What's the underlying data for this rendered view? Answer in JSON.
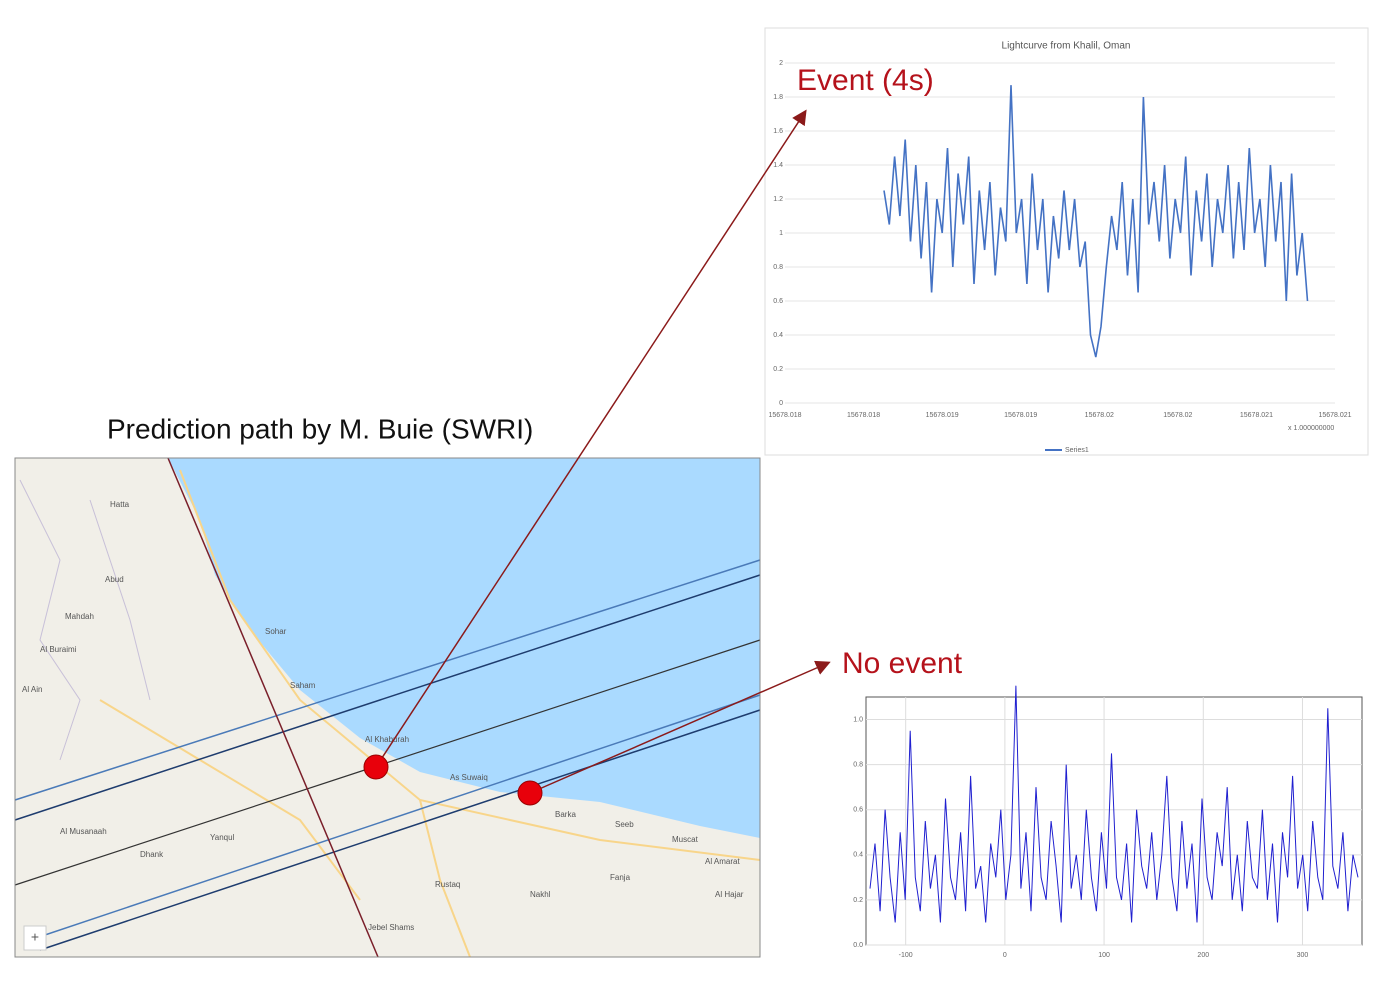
{
  "figure": {
    "title": "Prediction path by M. Buie (SWRI)",
    "event_label": "Event (4s)",
    "no_event_label": "No event",
    "map_labels": [
      "Hatta",
      "Abud",
      "Mahdah",
      "Al Buraimi",
      "Al Ain",
      "Sohar",
      "Saham",
      "Al Khaburah",
      "As Suwaiq",
      "Al Musanaah",
      "Barka",
      "Seeb",
      "Muscat",
      "Al Amarat",
      "Al Hajar",
      "Fanja",
      "Nakhl",
      "Rustaq",
      "Yanqul",
      "Dhank",
      "Jebel Shams"
    ],
    "map_zoom": "+"
  },
  "chart_data": [
    {
      "type": "line",
      "title": "Lightcurve from Khalil, Oman",
      "ylim": [
        0,
        2
      ],
      "yticks": [
        0,
        0.2,
        0.4,
        0.6,
        0.8,
        1,
        1.2,
        1.4,
        1.6,
        1.8,
        2
      ],
      "x_tick_labels": [
        "15678.018",
        "15678.018",
        "15678.019",
        "15678.019",
        "15678.02",
        "15678.02",
        "15678.021",
        "15678.021"
      ],
      "x_multiplier": "x 1.000000000",
      "grid": true,
      "series": [
        {
          "name": "Series1",
          "color": "#4472c4",
          "values": [
            1.25,
            1.05,
            1.45,
            1.1,
            1.55,
            0.95,
            1.4,
            0.85,
            1.3,
            0.65,
            1.2,
            1.0,
            1.5,
            0.8,
            1.35,
            1.05,
            1.45,
            0.7,
            1.25,
            0.9,
            1.3,
            0.75,
            1.15,
            0.95,
            1.87,
            1.0,
            1.2,
            0.7,
            1.35,
            0.9,
            1.2,
            0.65,
            1.1,
            0.85,
            1.25,
            0.9,
            1.2,
            0.8,
            0.95,
            0.4,
            0.27,
            0.45,
            0.8,
            1.1,
            0.9,
            1.3,
            0.75,
            1.2,
            0.65,
            1.8,
            1.05,
            1.3,
            0.95,
            1.4,
            0.85,
            1.2,
            1.0,
            1.45,
            0.75,
            1.25,
            0.95,
            1.35,
            0.8,
            1.2,
            1.0,
            1.4,
            0.85,
            1.3,
            0.9,
            1.5,
            1.0,
            1.2,
            0.8,
            1.4,
            0.95,
            1.3,
            0.6,
            1.35,
            0.75,
            1.0,
            0.6
          ]
        }
      ]
    },
    {
      "type": "line",
      "ylim": [
        0,
        1.1
      ],
      "yticks": [
        {
          "value": 0,
          "label": "0.0"
        },
        0.2,
        0.4,
        0.6,
        0.8,
        {
          "value": 1,
          "label": "1.0"
        }
      ],
      "xlim": [
        -140,
        360
      ],
      "xticks": [
        -100,
        0,
        100,
        200,
        300
      ],
      "grid": true,
      "series": [
        {
          "color": "#2020d0",
          "values": [
            0.25,
            0.45,
            0.15,
            0.6,
            0.3,
            0.1,
            0.5,
            0.2,
            0.95,
            0.3,
            0.15,
            0.55,
            0.25,
            0.4,
            0.1,
            0.65,
            0.3,
            0.2,
            0.5,
            0.15,
            0.75,
            0.25,
            0.35,
            0.1,
            0.45,
            0.3,
            0.6,
            0.2,
            0.4,
            1.15,
            0.25,
            0.5,
            0.15,
            0.7,
            0.3,
            0.2,
            0.55,
            0.35,
            0.1,
            0.8,
            0.25,
            0.4,
            0.2,
            0.6,
            0.3,
            0.15,
            0.5,
            0.25,
            0.85,
            0.3,
            0.2,
            0.45,
            0.1,
            0.6,
            0.35,
            0.25,
            0.5,
            0.2,
            0.4,
            0.75,
            0.3,
            0.15,
            0.55,
            0.25,
            0.45,
            0.1,
            0.65,
            0.3,
            0.2,
            0.5,
            0.35,
            0.7,
            0.2,
            0.4,
            0.15,
            0.55,
            0.3,
            0.25,
            0.6,
            0.2,
            0.45,
            0.1,
            0.5,
            0.3,
            0.75,
            0.25,
            0.4,
            0.15,
            0.55,
            0.3,
            0.2,
            1.05,
            0.35,
            0.25,
            0.5,
            0.15,
            0.4,
            0.3
          ]
        }
      ]
    }
  ]
}
